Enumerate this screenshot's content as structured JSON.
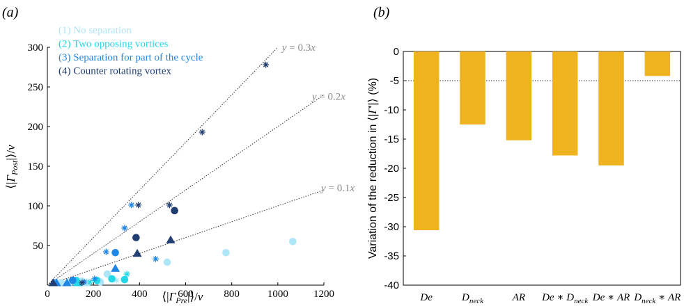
{
  "panels": {
    "a_label": "(a)",
    "b_label": "(b)"
  },
  "colors": {
    "no_separation": "#aee6f7",
    "two_opposing": "#22d8e8",
    "partial_separation": "#1f86e6",
    "counter_rotating": "#213f73",
    "bar": "#efb31f",
    "fit_line": "#333333",
    "fit_label": "#8a8a8a"
  },
  "chart_data": [
    {
      "type": "scatter",
      "title": "",
      "xlabel": "⟨|Γ_Pre|⟩/ν",
      "ylabel": "⟨|Γ_Post|⟩/ν",
      "xlim": [
        0,
        1200
      ],
      "ylim": [
        0,
        300
      ],
      "xticks": [
        0,
        200,
        400,
        600,
        800,
        1000,
        1200
      ],
      "yticks": [
        50,
        100,
        150,
        200,
        250,
        300
      ],
      "x_tick_labels": [
        "0",
        "200",
        "400",
        "600",
        "800",
        "1000",
        "1200"
      ],
      "y_tick_labels": [
        "50",
        "100",
        "150",
        "200",
        "250",
        "300"
      ],
      "legend_position": "top-left",
      "fit_lines": [
        {
          "slope": 0.3,
          "label": "y = 0.3x",
          "x_end": 1000
        },
        {
          "slope": 0.2,
          "label": "y = 0.2x",
          "x_end": 1200
        },
        {
          "slope": 0.1,
          "label": "y = 0.1x",
          "x_end": 1200
        }
      ],
      "series": [
        {
          "name": "(1) No separation",
          "color": "#aee6f7",
          "points": [
            {
              "x": 1065,
              "y": 55,
              "marker": "circle"
            },
            {
              "x": 775,
              "y": 41,
              "marker": "circle"
            },
            {
              "x": 520,
              "y": 29,
              "marker": "circle"
            },
            {
              "x": 260,
              "y": 14,
              "marker": "circle"
            },
            {
              "x": 230,
              "y": 4,
              "marker": "circle"
            },
            {
              "x": 150,
              "y": 5,
              "marker": "circle"
            },
            {
              "x": 100,
              "y": 4,
              "marker": "circle"
            },
            {
              "x": 60,
              "y": 3,
              "marker": "circle"
            },
            {
              "x": 300,
              "y": 6,
              "marker": "star"
            },
            {
              "x": 170,
              "y": 3,
              "marker": "triangle"
            }
          ]
        },
        {
          "name": "(2) Two opposing vortices",
          "color": "#22d8e8",
          "points": [
            {
              "x": 280,
              "y": 8,
              "marker": "circle"
            },
            {
              "x": 335,
              "y": 7,
              "marker": "circle"
            },
            {
              "x": 125,
              "y": 6,
              "marker": "circle"
            },
            {
              "x": 215,
              "y": 6,
              "marker": "circle"
            },
            {
              "x": 185,
              "y": 4,
              "marker": "star"
            },
            {
              "x": 130,
              "y": 3,
              "marker": "triangle"
            },
            {
              "x": 345,
              "y": 14,
              "marker": "star"
            }
          ]
        },
        {
          "name": "(3) Separation for part of the cycle",
          "color": "#1f86e6",
          "points": [
            {
              "x": 295,
              "y": 41,
              "marker": "circle"
            },
            {
              "x": 295,
              "y": 21,
              "marker": "triangle"
            },
            {
              "x": 470,
              "y": 33,
              "marker": "star"
            },
            {
              "x": 255,
              "y": 42,
              "marker": "star"
            },
            {
              "x": 335,
              "y": 72,
              "marker": "star"
            },
            {
              "x": 365,
              "y": 101,
              "marker": "star"
            },
            {
              "x": 110,
              "y": 6,
              "marker": "circle"
            },
            {
              "x": 85,
              "y": 3,
              "marker": "triangle"
            },
            {
              "x": 30,
              "y": 4,
              "marker": "star"
            },
            {
              "x": 40,
              "y": 3,
              "marker": "triangle"
            },
            {
              "x": 205,
              "y": 8,
              "marker": "star"
            },
            {
              "x": 160,
              "y": 4,
              "marker": "star"
            }
          ]
        },
        {
          "name": "(4) Counter rotating vortex",
          "color": "#213f73",
          "points": [
            {
              "x": 948,
              "y": 278,
              "marker": "star"
            },
            {
              "x": 672,
              "y": 193,
              "marker": "star"
            },
            {
              "x": 530,
              "y": 101,
              "marker": "star"
            },
            {
              "x": 395,
              "y": 101,
              "marker": "star"
            },
            {
              "x": 552,
              "y": 94,
              "marker": "circle"
            },
            {
              "x": 385,
              "y": 60,
              "marker": "circle"
            },
            {
              "x": 535,
              "y": 57,
              "marker": "triangle"
            },
            {
              "x": 390,
              "y": 40,
              "marker": "triangle"
            },
            {
              "x": 25,
              "y": 3,
              "marker": "triangle"
            },
            {
              "x": 150,
              "y": 3,
              "marker": "star"
            }
          ]
        }
      ]
    },
    {
      "type": "bar",
      "title": "",
      "xlabel": "",
      "ylabel": "Variation of the reduction in ⟨|Γ'|⟩ (%)",
      "ylim": [
        -40,
        0
      ],
      "yticks": [
        0,
        -5,
        -10,
        -15,
        -20,
        -25,
        -30,
        -35,
        -40
      ],
      "y_tick_labels": [
        "0",
        "-5",
        "-10",
        "-15",
        "-20",
        "-25",
        "-30",
        "-35",
        "-40"
      ],
      "reference_line": -5,
      "categories": [
        "De",
        "D_neck",
        "AR",
        "De ∗ D_neck",
        "De ∗ AR",
        "D_neck ∗ AR"
      ],
      "values": [
        -30.6,
        -12.5,
        -15.2,
        -17.8,
        -19.5,
        -4.2
      ]
    }
  ]
}
